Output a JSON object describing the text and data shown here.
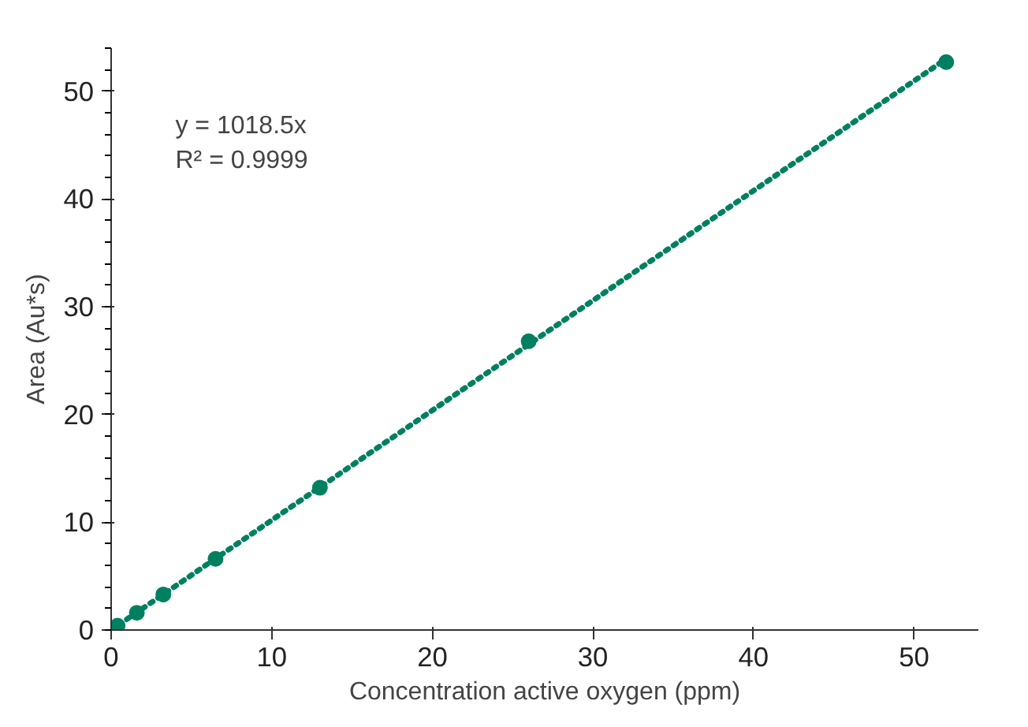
{
  "chart_data": {
    "type": "scatter",
    "xlabel": "Concentration active oxygen (ppm)",
    "ylabel": "Area (Au*s)",
    "xlim": [
      0,
      54
    ],
    "ylim": [
      0,
      54
    ],
    "xticks": [
      0,
      10,
      20,
      30,
      40,
      50
    ],
    "yticks": [
      0,
      10,
      20,
      30,
      40,
      50
    ],
    "grid": false,
    "series": [
      {
        "color": "#008060",
        "marker": "circle",
        "x": [
          0.4,
          1.6,
          3.25,
          6.5,
          13,
          26,
          52
        ],
        "values": [
          0.4,
          1.6,
          3.3,
          6.6,
          13.2,
          26.8,
          52.7
        ]
      },
      {
        "type": "line",
        "color": "#008060",
        "line_style": "dotted",
        "x": [
          0,
          52
        ],
        "values": [
          0,
          53
        ]
      }
    ],
    "annotations": [
      "y = 1018.5x\nR² = 0.9999"
    ]
  }
}
